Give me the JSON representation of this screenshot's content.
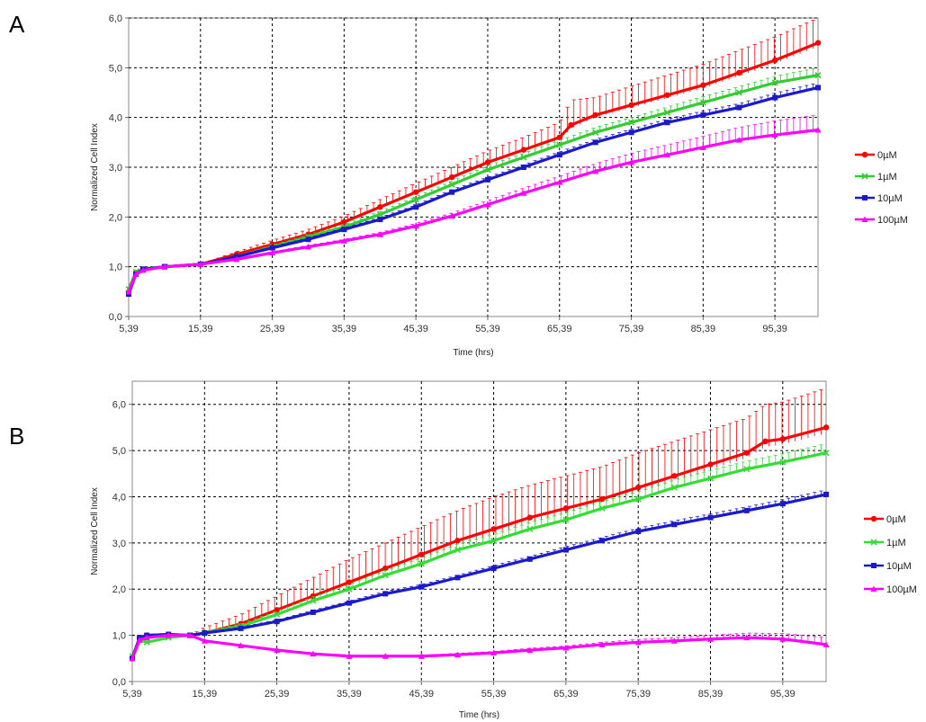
{
  "chart_data": [
    {
      "panel": "A",
      "type": "line",
      "xlabel": "Time (hrs)",
      "ylabel": "Normalized Cell Index",
      "xlim": [
        5.39,
        101.39
      ],
      "ylim": [
        0,
        6
      ],
      "x_ticks": [
        "5,39",
        "15,39",
        "25,39",
        "35,39",
        "45,39",
        "55,39",
        "65,39",
        "75,39",
        "85,39",
        "95,39"
      ],
      "y_ticks": [
        "0,0",
        "1,0",
        "2,0",
        "3,0",
        "4,0",
        "5,0",
        "6,0"
      ],
      "grid": true,
      "legend_position": "right",
      "series": [
        {
          "name": "0µM",
          "color": "#ff0000",
          "marker": "circle",
          "x": [
            5.39,
            6.4,
            7.4,
            10.4,
            15.4,
            20.4,
            25.4,
            30.4,
            35.4,
            40.4,
            45.4,
            50.4,
            55.4,
            60.4,
            65.4,
            67.0,
            70.4,
            75.4,
            80.4,
            85.4,
            90.4,
            95.4,
            101.4
          ],
          "y": [
            0.5,
            0.88,
            0.95,
            1.0,
            1.05,
            1.25,
            1.45,
            1.65,
            1.9,
            2.2,
            2.5,
            2.8,
            3.1,
            3.35,
            3.6,
            3.85,
            4.05,
            4.25,
            4.45,
            4.65,
            4.9,
            5.15,
            5.5
          ],
          "err": [
            0,
            0,
            0,
            0,
            0,
            0.05,
            0.08,
            0.1,
            0.12,
            0.15,
            0.18,
            0.2,
            0.23,
            0.25,
            0.3,
            0.5,
            0.35,
            0.38,
            0.4,
            0.42,
            0.45,
            0.47,
            0.5
          ]
        },
        {
          "name": "1µM",
          "color": "#33cc33",
          "marker": "x",
          "x": [
            5.39,
            6.4,
            7.4,
            10.4,
            15.4,
            20.4,
            25.4,
            30.4,
            35.4,
            40.4,
            45.4,
            50.4,
            55.4,
            60.4,
            65.4,
            70.4,
            75.4,
            80.4,
            85.4,
            90.4,
            95.4,
            101.4
          ],
          "y": [
            0.55,
            0.9,
            0.96,
            1.0,
            1.05,
            1.2,
            1.4,
            1.6,
            1.8,
            2.05,
            2.35,
            2.65,
            2.95,
            3.2,
            3.45,
            3.7,
            3.9,
            4.1,
            4.3,
            4.5,
            4.7,
            4.85
          ],
          "err": [
            0,
            0,
            0,
            0,
            0,
            0.02,
            0.03,
            0.04,
            0.05,
            0.06,
            0.06,
            0.07,
            0.08,
            0.08,
            0.09,
            0.1,
            0.1,
            0.11,
            0.12,
            0.12,
            0.13,
            0.15
          ]
        },
        {
          "name": "10µM",
          "color": "#1a1acc",
          "marker": "square",
          "x": [
            5.39,
            6.4,
            7.4,
            10.4,
            15.4,
            20.4,
            25.4,
            30.4,
            35.4,
            40.4,
            45.4,
            50.4,
            55.4,
            60.4,
            65.4,
            70.4,
            75.4,
            80.4,
            85.4,
            90.4,
            95.4,
            101.4
          ],
          "y": [
            0.45,
            0.85,
            0.95,
            1.0,
            1.05,
            1.2,
            1.38,
            1.55,
            1.75,
            1.95,
            2.2,
            2.5,
            2.75,
            3.0,
            3.25,
            3.5,
            3.7,
            3.9,
            4.05,
            4.2,
            4.4,
            4.6
          ],
          "err": [
            0,
            0,
            0,
            0,
            0,
            0.02,
            0.02,
            0.03,
            0.03,
            0.04,
            0.04,
            0.05,
            0.05,
            0.05,
            0.06,
            0.06,
            0.07,
            0.07,
            0.08,
            0.08,
            0.09,
            0.1
          ]
        },
        {
          "name": "100µM",
          "color": "#ff00ff",
          "marker": "triangle",
          "x": [
            5.39,
            6.4,
            7.4,
            10.4,
            15.4,
            20.4,
            25.4,
            30.4,
            35.4,
            40.4,
            45.4,
            50.4,
            55.4,
            60.4,
            65.4,
            70.4,
            75.4,
            80.4,
            85.4,
            90.4,
            95.4,
            101.4
          ],
          "y": [
            0.5,
            0.85,
            0.93,
            1.0,
            1.05,
            1.15,
            1.28,
            1.4,
            1.52,
            1.65,
            1.82,
            2.02,
            2.25,
            2.48,
            2.7,
            2.92,
            3.1,
            3.25,
            3.4,
            3.55,
            3.65,
            3.75
          ],
          "err": [
            0,
            0,
            0,
            0,
            0,
            0.02,
            0.02,
            0.03,
            0.03,
            0.04,
            0.05,
            0.06,
            0.08,
            0.1,
            0.12,
            0.15,
            0.18,
            0.2,
            0.22,
            0.25,
            0.28,
            0.3
          ]
        }
      ]
    },
    {
      "panel": "B",
      "type": "line",
      "xlabel": "Time (hrs)",
      "ylabel": "Normalized Cell Index",
      "xlim": [
        5.39,
        101.39
      ],
      "ylim": [
        0,
        6.5
      ],
      "x_ticks": [
        "5,39",
        "15,39",
        "25,39",
        "35,39",
        "45,39",
        "55,39",
        "65,39",
        "75,39",
        "85,39",
        "95,39"
      ],
      "y_ticks": [
        "0,0",
        "1,0",
        "2,0",
        "3,0",
        "4,0",
        "5,0",
        "6,0"
      ],
      "grid": true,
      "legend_position": "right",
      "series": [
        {
          "name": "0µM",
          "color": "#ff0000",
          "marker": "circle",
          "x": [
            5.39,
            6.4,
            7.4,
            10.4,
            13.4,
            15.4,
            20.4,
            25.4,
            30.4,
            35.4,
            40.4,
            45.4,
            50.4,
            55.4,
            60.4,
            65.4,
            70.4,
            75.4,
            80.4,
            85.4,
            90.4,
            93.0,
            95.4,
            101.4
          ],
          "y": [
            0.5,
            0.95,
            1.0,
            1.02,
            1.0,
            1.05,
            1.25,
            1.55,
            1.85,
            2.15,
            2.45,
            2.75,
            3.05,
            3.3,
            3.55,
            3.75,
            3.95,
            4.2,
            4.45,
            4.7,
            4.95,
            5.2,
            5.25,
            5.5
          ],
          "err": [
            0,
            0.1,
            0.12,
            0.12,
            0,
            0.12,
            0.2,
            0.3,
            0.4,
            0.5,
            0.55,
            0.6,
            0.65,
            0.7,
            0.7,
            0.7,
            0.7,
            0.75,
            0.75,
            0.75,
            0.75,
            0.8,
            0.8,
            0.85
          ]
        },
        {
          "name": "1µM",
          "color": "#33dd33",
          "marker": "x",
          "x": [
            5.39,
            6.4,
            7.4,
            10.4,
            13.4,
            15.4,
            20.4,
            25.4,
            30.4,
            35.4,
            40.4,
            45.4,
            50.4,
            55.4,
            60.4,
            65.4,
            70.4,
            75.4,
            80.4,
            85.4,
            90.4,
            95.4,
            101.4
          ],
          "y": [
            0.55,
            0.9,
            0.85,
            0.95,
            1.0,
            1.05,
            1.2,
            1.45,
            1.75,
            2.0,
            2.3,
            2.55,
            2.85,
            3.05,
            3.3,
            3.5,
            3.75,
            3.95,
            4.2,
            4.4,
            4.6,
            4.75,
            4.95
          ],
          "err": [
            0,
            0,
            0,
            0,
            0,
            0.03,
            0.05,
            0.07,
            0.08,
            0.1,
            0.1,
            0.12,
            0.12,
            0.13,
            0.14,
            0.15,
            0.15,
            0.16,
            0.16,
            0.17,
            0.17,
            0.18,
            0.2
          ]
        },
        {
          "name": "10µM",
          "color": "#1a1acc",
          "marker": "square",
          "x": [
            5.39,
            6.4,
            7.4,
            10.4,
            13.4,
            15.4,
            20.4,
            25.4,
            30.4,
            35.4,
            40.4,
            45.4,
            50.4,
            55.4,
            60.4,
            65.4,
            70.4,
            75.4,
            80.4,
            85.4,
            90.4,
            95.4,
            101.4
          ],
          "y": [
            0.5,
            0.95,
            1.0,
            1.02,
            1.0,
            1.05,
            1.15,
            1.3,
            1.5,
            1.7,
            1.9,
            2.05,
            2.25,
            2.45,
            2.65,
            2.85,
            3.05,
            3.25,
            3.4,
            3.55,
            3.7,
            3.85,
            4.05
          ],
          "err": [
            0,
            0,
            0,
            0,
            0,
            0.02,
            0.03,
            0.03,
            0.04,
            0.04,
            0.05,
            0.05,
            0.05,
            0.06,
            0.06,
            0.07,
            0.07,
            0.07,
            0.08,
            0.08,
            0.08,
            0.09,
            0.1
          ]
        },
        {
          "name": "100µM",
          "color": "#ff00ff",
          "marker": "triangle",
          "x": [
            5.39,
            6.4,
            7.4,
            10.4,
            13.4,
            15.4,
            20.4,
            25.4,
            30.4,
            35.4,
            40.4,
            45.4,
            50.4,
            55.4,
            60.4,
            65.4,
            70.4,
            75.4,
            80.4,
            85.4,
            90.4,
            95.4,
            101.4
          ],
          "y": [
            0.5,
            0.9,
            0.95,
            1.0,
            1.0,
            0.88,
            0.78,
            0.68,
            0.6,
            0.55,
            0.55,
            0.55,
            0.58,
            0.62,
            0.68,
            0.73,
            0.8,
            0.85,
            0.88,
            0.92,
            0.95,
            0.92,
            0.8
          ],
          "err": [
            0,
            0,
            0,
            0,
            0,
            0.02,
            0.02,
            0.02,
            0.02,
            0.02,
            0.02,
            0.02,
            0.03,
            0.03,
            0.04,
            0.04,
            0.05,
            0.06,
            0.07,
            0.08,
            0.1,
            0.12,
            0.15
          ]
        }
      ]
    }
  ]
}
